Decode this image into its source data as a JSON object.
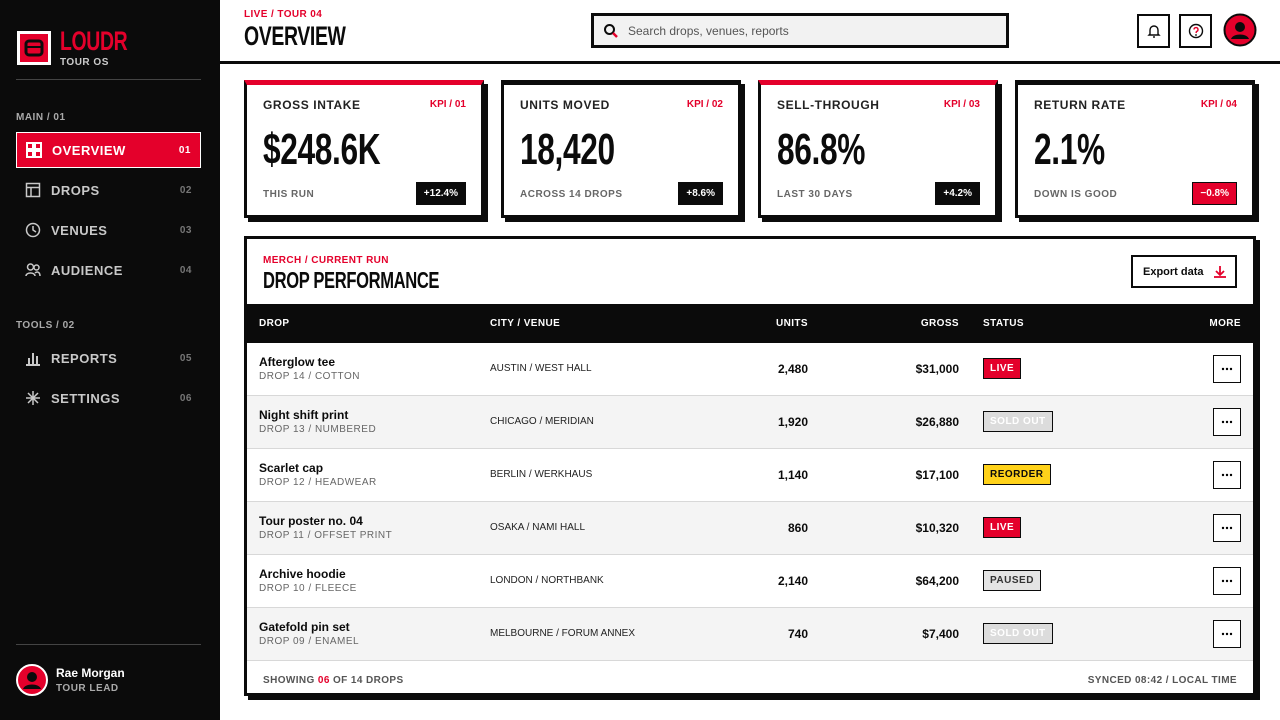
{
  "sidebar": {
    "brand": "LOUDR",
    "subbrand": "TOUR OS",
    "sections": [
      {
        "title": "MAIN / 01",
        "items": [
          {
            "label": "OVERVIEW",
            "num": "01",
            "active": true
          },
          {
            "label": "DROPS",
            "num": "02",
            "active": false
          },
          {
            "label": "VENUES",
            "num": "03",
            "active": false
          },
          {
            "label": "AUDIENCE",
            "num": "04",
            "active": false
          }
        ]
      },
      {
        "title": "TOOLS / 02",
        "items": [
          {
            "label": "REPORTS",
            "num": "05",
            "active": false
          },
          {
            "label": "SETTINGS",
            "num": "06",
            "active": false
          }
        ]
      }
    ],
    "user": {
      "name": "Rae Morgan",
      "role": "TOUR LEAD"
    }
  },
  "header": {
    "eyebrow": "LIVE / TOUR 04",
    "title": "OVERVIEW",
    "search_placeholder": "Search drops, venues, reports"
  },
  "kpis": [
    {
      "label": "GROSS INTAKE",
      "tag": "KPI / 01",
      "value": "$248.6K",
      "note": "THIS RUN",
      "delta": "+12.4%",
      "top_color": "#e4002b",
      "delta_color": "#0b0b0b"
    },
    {
      "label": "UNITS MOVED",
      "tag": "KPI / 02",
      "value": "18,420",
      "note": "ACROSS 14 DROPS",
      "delta": "+8.6%",
      "top_color": "#0b0b0b",
      "delta_color": "#0b0b0b"
    },
    {
      "label": "SELL-THROUGH",
      "tag": "KPI / 03",
      "value": "86.8%",
      "note": "LAST 30 DAYS",
      "delta": "+4.2%",
      "top_color": "#e4002b",
      "delta_color": "#0b0b0b"
    },
    {
      "label": "RETURN RATE",
      "tag": "KPI / 04",
      "value": "2.1%",
      "note": "DOWN IS GOOD",
      "delta": "−0.8%",
      "top_color": "#0b0b0b",
      "delta_color": "#e4002b"
    }
  ],
  "table": {
    "eyebrow": "MERCH / CURRENT RUN",
    "title": "DROP PERFORMANCE",
    "export": "Export data",
    "columns": [
      "DROP",
      "CITY / VENUE",
      "UNITS",
      "GROSS",
      "STATUS",
      "MORE"
    ],
    "rows": [
      {
        "name": "Afterglow tee",
        "sub": "DROP 14 / COTTON",
        "venue": "AUSTIN / WEST HALL",
        "units": "2,480",
        "gross": "$31,000",
        "status": {
          "label": "LIVE",
          "fill": "#e4002b",
          "ink": "#ffffff"
        }
      },
      {
        "name": "Night shift print",
        "sub": "DROP 13 / NUMBERED",
        "venue": "CHICAGO / MERIDIAN",
        "units": "1,920",
        "gross": "$26,880",
        "status": {
          "label": "SOLD OUT",
          "fill": "#dcdcdc",
          "ink": "#ffffff"
        }
      },
      {
        "name": "Scarlet cap",
        "sub": "DROP 12 / HEADWEAR",
        "venue": "BERLIN / WERKHAUS",
        "units": "1,140",
        "gross": "$17,100",
        "status": {
          "label": "REORDER",
          "fill": "#ffd21a",
          "ink": "#0b0b0b"
        }
      },
      {
        "name": "Tour poster no. 04",
        "sub": "DROP 11 / OFFSET PRINT",
        "venue": "OSAKA / NAMI HALL",
        "units": "860",
        "gross": "$10,320",
        "status": {
          "label": "LIVE",
          "fill": "#e4002b",
          "ink": "#ffffff"
        }
      },
      {
        "name": "Archive hoodie",
        "sub": "DROP 10 / FLEECE",
        "venue": "LONDON / NORTHBANK",
        "units": "2,140",
        "gross": "$64,200",
        "status": {
          "label": "PAUSED",
          "fill": "#e4e4e4",
          "ink": "#333333"
        }
      },
      {
        "name": "Gatefold pin set",
        "sub": "DROP 09 / ENAMEL",
        "venue": "MELBOURNE / FORUM ANNEX",
        "units": "740",
        "gross": "$7,400",
        "status": {
          "label": "SOLD OUT",
          "fill": "#dcdcdc",
          "ink": "#ffffff"
        }
      }
    ],
    "footer": {
      "prefix": "SHOWING",
      "count": "06",
      "suffix": "OF 14 DROPS",
      "synced": "SYNCED 08:42 / LOCAL TIME"
    }
  }
}
